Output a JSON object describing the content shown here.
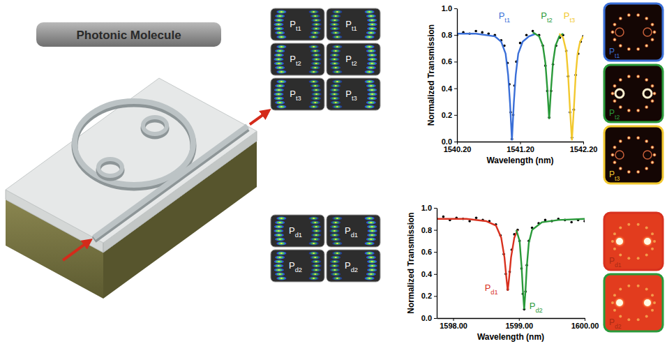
{
  "header": {
    "title": "Photonic Molecule"
  },
  "mode_profiles": {
    "transmission": [
      [
        "Pt1",
        "Pt1"
      ],
      [
        "Pt2",
        "Pt2"
      ],
      [
        "Pt3",
        "Pt3"
      ]
    ],
    "drop": [
      [
        "Pd1",
        "Pd1"
      ],
      [
        "Pd2",
        "Pd2"
      ]
    ]
  },
  "camera_images": {
    "transmission": [
      {
        "label": "Pt1",
        "color": "#3a6fd8"
      },
      {
        "label": "Pt2",
        "color": "#2a9a3a"
      },
      {
        "label": "Pt3",
        "color": "#f2c82e"
      }
    ],
    "drop": [
      {
        "label": "Pd1",
        "color": "#d8311f"
      },
      {
        "label": "Pd2",
        "color": "#2a9a3a"
      }
    ]
  },
  "chart_data": [
    {
      "type": "scatter",
      "xlabel": "Wavelength (nm)",
      "ylabel": "Normalized Transmission",
      "xlim": [
        1540.2,
        1542.2
      ],
      "xticks": [
        {
          "value": 1540.2,
          "label": "1540.20"
        },
        {
          "value": 1541.2,
          "label": "1541.20"
        },
        {
          "value": 1542.2,
          "label": "1542.20"
        }
      ],
      "ylim": [
        0,
        1
      ],
      "yticks": [
        {
          "value": 0,
          "label": "0.0"
        },
        0.2,
        0.4,
        0.6,
        0.8,
        {
          "value": 1,
          "label": "1.0"
        }
      ],
      "grid": false,
      "series": [
        {
          "type": "scatter",
          "color": "#000000",
          "marker": "circle",
          "x": [
            1540.2,
            1540.3,
            1540.4,
            1540.5,
            1540.6,
            1540.7,
            1540.8,
            1540.9,
            1540.95,
            1541.0,
            1541.03,
            1541.05,
            1541.07,
            1541.09,
            1541.11,
            1541.14,
            1541.2,
            1541.3,
            1541.4,
            1541.5,
            1541.56,
            1541.6,
            1541.63,
            1541.66,
            1541.69,
            1541.72,
            1541.77,
            1541.83,
            1541.88,
            1541.93,
            1541.96,
            1541.99,
            1542.02,
            1542.05,
            1542.08,
            1542.12,
            1542.16,
            1542.2
          ],
          "values": [
            0.8,
            0.82,
            0.81,
            0.83,
            0.82,
            0.81,
            0.8,
            0.76,
            0.72,
            0.59,
            0.43,
            0.22,
            0.02,
            0.2,
            0.42,
            0.6,
            0.74,
            0.8,
            0.83,
            0.8,
            0.72,
            0.57,
            0.38,
            0.18,
            0.38,
            0.58,
            0.72,
            0.78,
            0.8,
            0.68,
            0.49,
            0.22,
            0.03,
            0.24,
            0.5,
            0.66,
            0.75,
            0.79
          ]
        },
        {
          "type": "line",
          "color": "#3a6fd8",
          "line_style": "solid",
          "x": [
            1540.2,
            1540.5,
            1540.8,
            1540.9,
            1540.97,
            1541.01,
            1541.04,
            1541.07,
            1541.1,
            1541.13,
            1541.17,
            1541.24,
            1541.34,
            1541.45
          ],
          "values": [
            0.81,
            0.81,
            0.79,
            0.75,
            0.66,
            0.5,
            0.29,
            0.01,
            0.29,
            0.5,
            0.66,
            0.75,
            0.79,
            0.81
          ]
        },
        {
          "type": "line",
          "color": "#2a9a3a",
          "line_style": "solid",
          "x": [
            1541.4,
            1541.5,
            1541.56,
            1541.6,
            1541.63,
            1541.66,
            1541.69,
            1541.72,
            1541.76,
            1541.82,
            1541.88
          ],
          "values": [
            0.82,
            0.79,
            0.72,
            0.59,
            0.4,
            0.17,
            0.4,
            0.59,
            0.72,
            0.79,
            0.81
          ]
        },
        {
          "type": "line",
          "color": "#f2c82e",
          "line_style": "solid",
          "x": [
            1541.82,
            1541.88,
            1541.93,
            1541.96,
            1541.99,
            1542.02,
            1542.05,
            1542.08,
            1542.11,
            1542.15,
            1542.2
          ],
          "values": [
            0.81,
            0.78,
            0.68,
            0.5,
            0.24,
            0.01,
            0.24,
            0.5,
            0.66,
            0.75,
            0.79
          ]
        }
      ],
      "annotations": [
        {
          "text": "Pt1",
          "x": 1540.95,
          "y": 0.92,
          "color": "#3a6fd8"
        },
        {
          "text": "Pt2",
          "x": 1541.62,
          "y": 0.92,
          "color": "#2a9a3a"
        },
        {
          "text": "Pt3",
          "x": 1541.98,
          "y": 0.92,
          "color": "#f2c82e"
        }
      ]
    },
    {
      "type": "scatter",
      "xlabel": "Wavelength (nm)",
      "ylabel": "Normalized Transmission",
      "xlim": [
        1597.75,
        1600.0
      ],
      "xticks": [
        {
          "value": 1598,
          "label": "1598.00"
        },
        {
          "value": 1599,
          "label": "1599.00"
        },
        {
          "value": 1600,
          "label": "1600.00"
        }
      ],
      "ylim": [
        0,
        1
      ],
      "yticks": [
        {
          "value": 0,
          "label": "0.0"
        },
        0.2,
        0.4,
        0.6,
        0.8,
        {
          "value": 1,
          "label": "1.0"
        }
      ],
      "grid": false,
      "series": [
        {
          "type": "scatter",
          "color": "#000000",
          "marker": "circle",
          "x": [
            1597.75,
            1597.85,
            1597.95,
            1598.05,
            1598.15,
            1598.25,
            1598.35,
            1598.45,
            1598.55,
            1598.65,
            1598.72,
            1598.77,
            1598.8,
            1598.83,
            1598.86,
            1598.89,
            1598.93,
            1598.98,
            1599.01,
            1599.04,
            1599.06,
            1599.08,
            1599.1,
            1599.12,
            1599.15,
            1599.2,
            1599.3,
            1599.4,
            1599.5,
            1599.6,
            1599.7,
            1599.8,
            1599.9,
            1600.0
          ],
          "values": [
            0.9,
            0.92,
            0.89,
            0.91,
            0.9,
            0.88,
            0.91,
            0.89,
            0.88,
            0.85,
            0.75,
            0.58,
            0.4,
            0.26,
            0.42,
            0.62,
            0.76,
            0.8,
            0.7,
            0.45,
            0.22,
            0.08,
            0.24,
            0.48,
            0.7,
            0.82,
            0.86,
            0.89,
            0.88,
            0.9,
            0.89,
            0.87,
            0.89,
            0.88
          ]
        },
        {
          "type": "line",
          "color": "#d8311f",
          "line_style": "solid",
          "x": [
            1597.75,
            1598.2,
            1598.5,
            1598.65,
            1598.73,
            1598.78,
            1598.81,
            1598.83,
            1598.85,
            1598.88,
            1598.93,
            1598.98
          ],
          "values": [
            0.9,
            0.9,
            0.88,
            0.84,
            0.73,
            0.55,
            0.36,
            0.25,
            0.36,
            0.55,
            0.73,
            0.8
          ]
        },
        {
          "type": "line",
          "color": "#2a9a3a",
          "line_style": "solid",
          "x": [
            1598.96,
            1599.01,
            1599.04,
            1599.06,
            1599.08,
            1599.1,
            1599.12,
            1599.15,
            1599.2,
            1599.35,
            1599.6,
            1600.0
          ],
          "values": [
            0.8,
            0.7,
            0.47,
            0.25,
            0.08,
            0.25,
            0.47,
            0.68,
            0.8,
            0.87,
            0.89,
            0.9
          ]
        }
      ],
      "annotations": [
        {
          "text": "Pd1",
          "x": 1598.58,
          "y": 0.25,
          "color": "#d8311f"
        },
        {
          "text": "Pd2",
          "x": 1599.26,
          "y": 0.08,
          "color": "#2a9a3a"
        }
      ]
    }
  ]
}
